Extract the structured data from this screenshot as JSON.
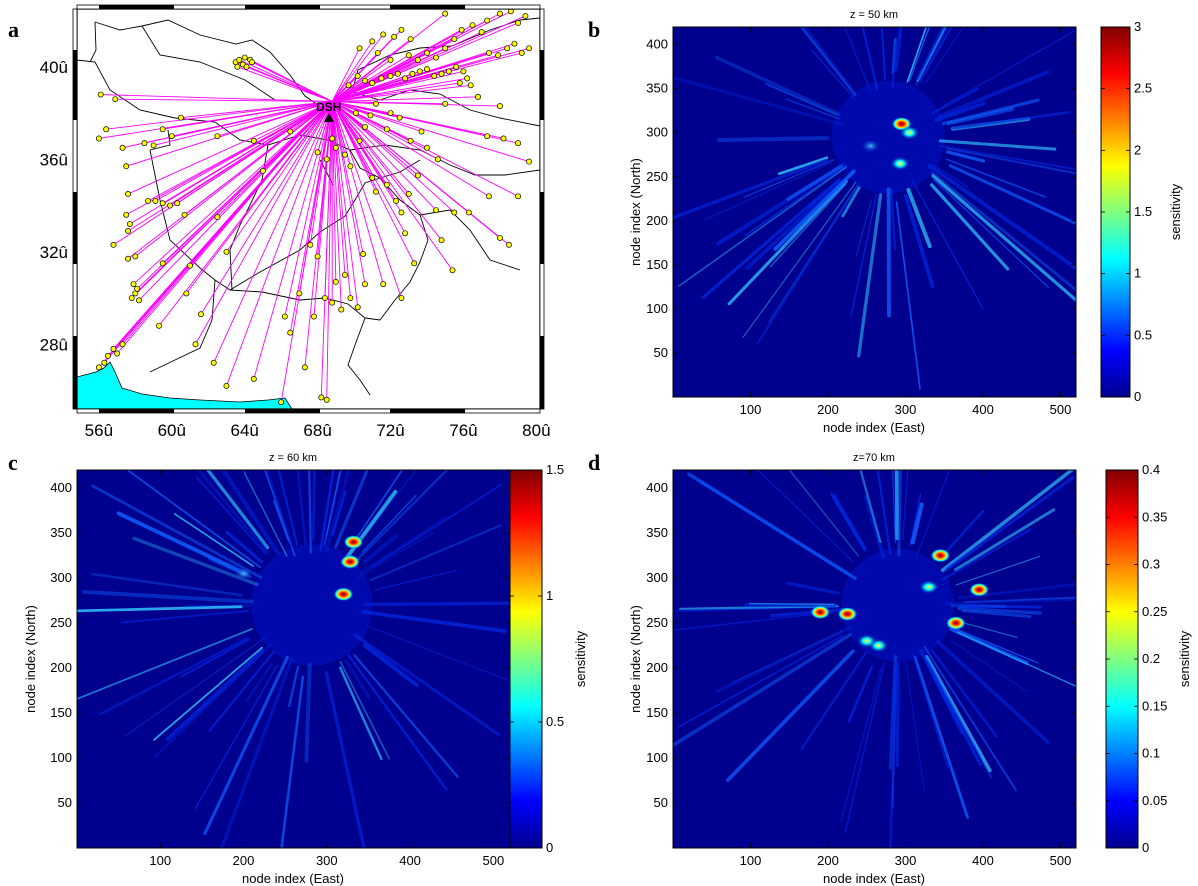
{
  "panels": {
    "a": {
      "label": "a"
    },
    "b": {
      "label": "b"
    },
    "c": {
      "label": "c"
    },
    "d": {
      "label": "d"
    }
  },
  "chart_data": [
    {
      "type": "map",
      "panel": "a",
      "station": "DSH",
      "xticks": [
        "56û",
        "60û",
        "64û",
        "68û",
        "72û",
        "76û",
        "80û"
      ],
      "yticks": [
        "40û",
        "36û",
        "32û",
        "28û"
      ],
      "xticks_deg": [
        56,
        60,
        64,
        68,
        72,
        76,
        80
      ],
      "yticks_deg": [
        40,
        36,
        32,
        28
      ],
      "xlim": [
        54.8,
        80.2
      ],
      "ylim": [
        25.2,
        42.5
      ],
      "colors": {
        "rays": "#ff00ff",
        "events": "#ffff00",
        "sea": "#00ffff",
        "borders": "#000000"
      },
      "station_lonlat": [
        68.8,
        38.5
      ],
      "events": [
        [
          56.0,
          27.0
        ],
        [
          56.3,
          27.2
        ],
        [
          56.5,
          27.5
        ],
        [
          56.8,
          27.8
        ],
        [
          57.0,
          27.6
        ],
        [
          57.3,
          28.0
        ],
        [
          56.1,
          38.8
        ],
        [
          56.0,
          36.9
        ],
        [
          56.4,
          37.3
        ],
        [
          56.9,
          38.6
        ],
        [
          57.3,
          36.5
        ],
        [
          57.5,
          35.7
        ],
        [
          57.6,
          34.5
        ],
        [
          57.5,
          33.6
        ],
        [
          57.7,
          33.2
        ],
        [
          57.6,
          32.9
        ],
        [
          56.8,
          32.3
        ],
        [
          57.9,
          30.6
        ],
        [
          58.0,
          30.2
        ],
        [
          58.2,
          29.9
        ],
        [
          57.8,
          30.0
        ],
        [
          58.1,
          30.4
        ],
        [
          57.6,
          31.7
        ],
        [
          58.0,
          31.8
        ],
        [
          58.5,
          36.7
        ],
        [
          59.0,
          36.6
        ],
        [
          59.5,
          37.3
        ],
        [
          60.0,
          37.0
        ],
        [
          60.5,
          37.8
        ],
        [
          58.7,
          34.2
        ],
        [
          59.1,
          34.2
        ],
        [
          59.5,
          34.1
        ],
        [
          59.9,
          34.0
        ],
        [
          60.3,
          34.1
        ],
        [
          60.7,
          33.6
        ],
        [
          59.5,
          31.5
        ],
        [
          61.0,
          31.4
        ],
        [
          60.8,
          30.2
        ],
        [
          59.3,
          28.8
        ],
        [
          61.3,
          28.0
        ],
        [
          63.5,
          40.2
        ],
        [
          63.7,
          40.3
        ],
        [
          64.0,
          40.4
        ],
        [
          64.3,
          40.3
        ],
        [
          63.9,
          40.1
        ],
        [
          64.1,
          40.0
        ],
        [
          63.6,
          40.0
        ],
        [
          64.4,
          40.2
        ],
        [
          62.5,
          37.0
        ],
        [
          64.5,
          36.8
        ],
        [
          66.5,
          37.2
        ],
        [
          65.0,
          35.5
        ],
        [
          62.5,
          33.5
        ],
        [
          63.0,
          32.0
        ],
        [
          61.6,
          29.3
        ],
        [
          62.3,
          27.2
        ],
        [
          63.0,
          26.2
        ],
        [
          64.5,
          26.5
        ],
        [
          66.0,
          25.5
        ],
        [
          66.5,
          28.5
        ],
        [
          67.0,
          30.2
        ],
        [
          67.6,
          32.3
        ],
        [
          68.0,
          31.8
        ],
        [
          68.4,
          30.0
        ],
        [
          68.8,
          29.8
        ],
        [
          69.3,
          29.5
        ],
        [
          69.8,
          30.0
        ],
        [
          70.2,
          29.6
        ],
        [
          67.8,
          29.2
        ],
        [
          69.0,
          30.7
        ],
        [
          69.5,
          31.0
        ],
        [
          70.6,
          30.6
        ],
        [
          68.2,
          25.7
        ],
        [
          68.5,
          25.6
        ],
        [
          66.2,
          29.2
        ],
        [
          67.3,
          27.0
        ],
        [
          68.0,
          36.3
        ],
        [
          68.5,
          36.0
        ],
        [
          69.0,
          36.5
        ],
        [
          68.8,
          36.9
        ],
        [
          69.5,
          36.2
        ],
        [
          69.8,
          35.7
        ],
        [
          70.3,
          36.8
        ],
        [
          70.6,
          37.4
        ],
        [
          71.0,
          35.2
        ],
        [
          71.2,
          34.6
        ],
        [
          71.8,
          34.9
        ],
        [
          72.3,
          34.2
        ],
        [
          72.6,
          33.7
        ],
        [
          73.0,
          34.5
        ],
        [
          73.5,
          35.3
        ],
        [
          74.0,
          36.5
        ],
        [
          74.6,
          36.0
        ],
        [
          72.8,
          32.8
        ],
        [
          73.3,
          31.5
        ],
        [
          74.8,
          32.5
        ],
        [
          75.4,
          31.2
        ],
        [
          72.6,
          30.0
        ],
        [
          70.5,
          31.9
        ],
        [
          71.6,
          30.6
        ],
        [
          69.7,
          39.2
        ],
        [
          70.2,
          39.6
        ],
        [
          70.6,
          39.4
        ],
        [
          71.0,
          39.3
        ],
        [
          71.5,
          39.5
        ],
        [
          72.0,
          39.6
        ],
        [
          72.4,
          39.7
        ],
        [
          72.8,
          39.5
        ],
        [
          73.2,
          39.7
        ],
        [
          73.6,
          39.8
        ],
        [
          74.0,
          39.9
        ],
        [
          74.4,
          39.6
        ],
        [
          74.8,
          39.7
        ],
        [
          75.2,
          39.8
        ],
        [
          75.6,
          40.0
        ],
        [
          76.0,
          39.8
        ],
        [
          75.8,
          39.3
        ],
        [
          76.2,
          39.5
        ],
        [
          70.3,
          40.8
        ],
        [
          71.0,
          41.1
        ],
        [
          71.6,
          41.4
        ],
        [
          72.2,
          41.3
        ],
        [
          72.6,
          41.6
        ],
        [
          73.1,
          41.2
        ],
        [
          71.3,
          40.6
        ],
        [
          72.0,
          40.3
        ],
        [
          73.0,
          40.5
        ],
        [
          73.5,
          40.3
        ],
        [
          74.0,
          40.6
        ],
        [
          74.5,
          40.4
        ],
        [
          75.0,
          40.8
        ],
        [
          75.5,
          41.2
        ],
        [
          75.9,
          41.6
        ],
        [
          76.5,
          41.8
        ],
        [
          77.0,
          41.5
        ],
        [
          77.4,
          40.6
        ],
        [
          77.9,
          40.5
        ],
        [
          78.4,
          40.8
        ],
        [
          78.8,
          41.0
        ],
        [
          79.2,
          40.6
        ],
        [
          79.6,
          40.8
        ],
        [
          79.0,
          41.9
        ],
        [
          78.0,
          42.3
        ],
        [
          77.3,
          42.0
        ],
        [
          75.0,
          42.3
        ],
        [
          78.6,
          42.4
        ],
        [
          79.4,
          42.2
        ],
        [
          76.4,
          39.2
        ],
        [
          78.0,
          38.3
        ],
        [
          77.3,
          37.0
        ],
        [
          78.2,
          36.9
        ],
        [
          79.0,
          36.7
        ],
        [
          79.6,
          35.9
        ],
        [
          79.0,
          34.4
        ],
        [
          78.5,
          32.3
        ],
        [
          78.0,
          32.6
        ],
        [
          77.4,
          34.4
        ],
        [
          76.3,
          33.7
        ],
        [
          75.5,
          33.7
        ],
        [
          74.5,
          33.8
        ],
        [
          73.7,
          37.2
        ],
        [
          73.1,
          36.8
        ],
        [
          72.0,
          38.0
        ],
        [
          72.5,
          37.8
        ],
        [
          71.2,
          38.4
        ],
        [
          71.8,
          37.3
        ],
        [
          70.9,
          37.9
        ],
        [
          76.8,
          38.7
        ],
        [
          75.0,
          38.4
        ],
        [
          70.1,
          38.0
        ]
      ]
    },
    {
      "type": "heatmap",
      "panel": "b",
      "title": "z = 50 km",
      "xlabel": "node index (East)",
      "ylabel": "node index (North)",
      "xticks": [
        100,
        200,
        300,
        400,
        500
      ],
      "yticks": [
        50,
        100,
        150,
        200,
        250,
        300,
        350,
        400
      ],
      "xlim": [
        0,
        520
      ],
      "ylim": [
        0,
        420
      ],
      "colorbar": {
        "label": "sensitivity",
        "min": 0,
        "max": 3,
        "ticks": [
          "0",
          "0.5",
          "1",
          "1.5",
          "2",
          "2.5",
          "3"
        ]
      },
      "center": [
        278,
        295
      ],
      "features": [
        {
          "x": 295,
          "y": 310,
          "value": 3.0
        },
        {
          "x": 293,
          "y": 265,
          "value": 2.3
        },
        {
          "x": 305,
          "y": 300,
          "value": 1.5
        },
        {
          "x": 255,
          "y": 285,
          "value": 0.7
        }
      ]
    },
    {
      "type": "heatmap",
      "panel": "c",
      "title": "z = 60 km",
      "xlabel": "node index (East)",
      "ylabel": "node index (North)",
      "xticks": [
        100,
        200,
        300,
        400,
        500
      ],
      "yticks": [
        50,
        100,
        150,
        200,
        250,
        300,
        350,
        400
      ],
      "xlim": [
        0,
        520
      ],
      "ylim": [
        0,
        420
      ],
      "colorbar": {
        "label": "sensitivity",
        "min": 0,
        "max": 1.5,
        "ticks": [
          "0",
          "0.5",
          "1",
          "1.5"
        ]
      },
      "center": [
        282,
        270
      ],
      "features": [
        {
          "x": 332,
          "y": 340,
          "value": 1.4
        },
        {
          "x": 328,
          "y": 318,
          "value": 1.5
        },
        {
          "x": 320,
          "y": 282,
          "value": 1.4
        },
        {
          "x": 200,
          "y": 305,
          "value": 0.6
        }
      ]
    },
    {
      "type": "heatmap",
      "panel": "d",
      "title": "z=70 km",
      "xlabel": "node index (East)",
      "ylabel": "node index (North)",
      "xticks": [
        100,
        200,
        300,
        400,
        500
      ],
      "yticks": [
        50,
        100,
        150,
        200,
        250,
        300,
        350,
        400
      ],
      "xlim": [
        0,
        520
      ],
      "ylim": [
        0,
        420
      ],
      "colorbar": {
        "label": "sensitivity",
        "min": 0,
        "max": 0.4,
        "ticks": [
          "0",
          "0.05",
          "0.1",
          "0.15",
          "0.2",
          "0.25",
          "0.3",
          "0.35",
          "0.4"
        ]
      },
      "center": [
        290,
        270
      ],
      "features": [
        {
          "x": 345,
          "y": 325,
          "value": 0.4
        },
        {
          "x": 225,
          "y": 260,
          "value": 0.38
        },
        {
          "x": 190,
          "y": 262,
          "value": 0.36
        },
        {
          "x": 395,
          "y": 287,
          "value": 0.38
        },
        {
          "x": 365,
          "y": 250,
          "value": 0.4
        },
        {
          "x": 330,
          "y": 290,
          "value": 0.25
        },
        {
          "x": 265,
          "y": 225,
          "value": 0.22
        },
        {
          "x": 250,
          "y": 230,
          "value": 0.2
        }
      ]
    }
  ]
}
